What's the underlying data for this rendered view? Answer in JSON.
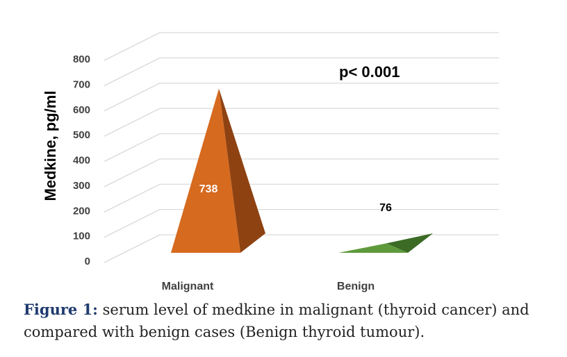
{
  "chart_data": {
    "type": "bar",
    "ylabel": "Medkine, pg/ml",
    "categories": [
      "Malignant",
      "Benign"
    ],
    "values": [
      738,
      76
    ],
    "data_labels": [
      "738",
      "76"
    ],
    "yticks": [
      "0",
      "100",
      "200",
      "300",
      "400",
      "500",
      "600",
      "700",
      "800"
    ],
    "ylim": [
      0,
      800
    ],
    "grid": true,
    "annotation": "p< 0.001",
    "colors": {
      "malignant_front": "#d66a1f",
      "malignant_side": "#8e4212",
      "benign_front": "#5e9a3c",
      "benign_side": "#3b6b25",
      "grid": "#d9d9d9",
      "malignant_label": "#ffffff",
      "benign_label": "#000000"
    }
  },
  "caption": {
    "label": "Figure 1:",
    "text": " serum level of medkine in malignant (thyroid cancer) and compared with benign cases (Benign thyroid tumour)."
  }
}
